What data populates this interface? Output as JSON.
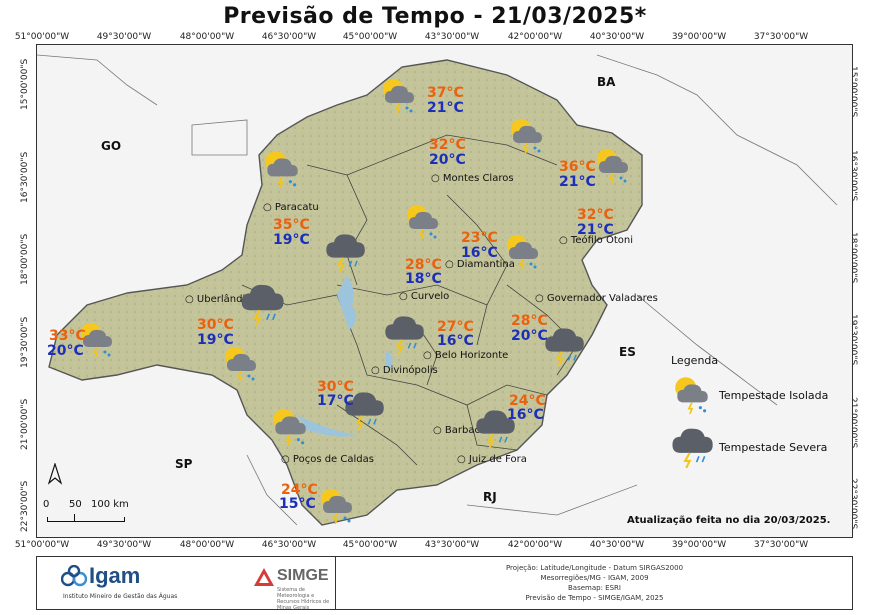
{
  "title": "Previsão de Tempo - 21/03/2025*",
  "coords": {
    "lon": [
      "51°00'00\"W",
      "49°30'00\"W",
      "48°00'00\"W",
      "46°30'00\"W",
      "45°00'00\"W",
      "43°30'00\"W",
      "42°00'00\"W",
      "40°30'00\"W",
      "39°00'00\"W",
      "37°30'00\"W"
    ],
    "lat": [
      "15°00'00\"S",
      "16°30'00\"S",
      "18°00'00\"S",
      "19°30'00\"S",
      "21°00'00\"S",
      "22°30'00\"S"
    ]
  },
  "states": [
    "GO",
    "BA",
    "ES",
    "SP",
    "RJ"
  ],
  "cities": [
    "Montes Claros",
    "Paracatu",
    "Teófilo Otoni",
    "Diamantina",
    "Curvelo",
    "Uberlândia",
    "Governador Valadares",
    "Belo Horizonte",
    "Divinópolis",
    "Barbacena",
    "Poços de Caldas",
    "Juiz de Fora"
  ],
  "forecasts": [
    {
      "region": "north",
      "max": "37°C",
      "min": "21°C",
      "icon": "tempestade-isolada"
    },
    {
      "region": "north-central",
      "max": "32°C",
      "min": "20°C",
      "icon": "tempestade-isolada"
    },
    {
      "region": "northeast",
      "max": "36°C",
      "min": "21°C",
      "icon": "tempestade-isolada"
    },
    {
      "region": "noroeste",
      "max": "35°C",
      "min": "19°C",
      "icon": "tempestade-isolada"
    },
    {
      "region": "jequitinhonha",
      "max": "23°C",
      "min": "16°C",
      "icon": "tempestade-isolada"
    },
    {
      "region": "mucuri",
      "max": "32°C",
      "min": "21°C",
      "icon": "tempestade-isolada"
    },
    {
      "region": "central",
      "max": "28°C",
      "min": "18°C",
      "icon": "tempestade-severa"
    },
    {
      "region": "triangulo-oeste",
      "max": "33°C",
      "min": "20°C",
      "icon": "tempestade-isolada"
    },
    {
      "region": "triangulo",
      "max": "30°C",
      "min": "19°C",
      "icon": "tempestade-severa"
    },
    {
      "region": "metropolitana",
      "max": "27°C",
      "min": "16°C",
      "icon": "tempestade-severa"
    },
    {
      "region": "vale-do-rio-doce",
      "max": "28°C",
      "min": "20°C",
      "icon": "tempestade-severa"
    },
    {
      "region": "oeste",
      "max": "30°C",
      "min": "17°C",
      "icon": "tempestade-severa"
    },
    {
      "region": "zona-da-mata",
      "max": "24°C",
      "min": "16°C",
      "icon": "tempestade-severa"
    },
    {
      "region": "sul",
      "max": "24°C",
      "min": "15°C",
      "icon": "tempestade-isolada"
    }
  ],
  "legend": {
    "title": "Legenda",
    "items": [
      {
        "label": "Tempestade Isolada",
        "icon": "sun-cloud-storm-icon"
      },
      {
        "label": "Tempestade Severa",
        "icon": "storm-cloud-icon"
      }
    ]
  },
  "scale": {
    "labels": [
      "0",
      "50",
      "100 km"
    ]
  },
  "north_arrow": "N",
  "update_note": "Atualização feita no dia 20/03/2025.",
  "footer": {
    "igam_name": "Igam",
    "igam_sub": "Instituto Mineiro de Gestão das Águas",
    "simge_name": "SIMGE",
    "simge_sub": "Sistema de Meteorologia e Recursos Hídricos de Minas Gerais",
    "credits": [
      "Projeção: Latitude/Longitude - Datum SIRGAS2000",
      "Mesorregiões/MG - IGAM, 2009",
      "Basemap: ESRI",
      "Previsão de Tempo - SIMGE/IGAM, 2025"
    ]
  },
  "colors": {
    "max_temp": "#e8620f",
    "min_temp": "#1c2fb8",
    "land": "#c9c9a0"
  }
}
